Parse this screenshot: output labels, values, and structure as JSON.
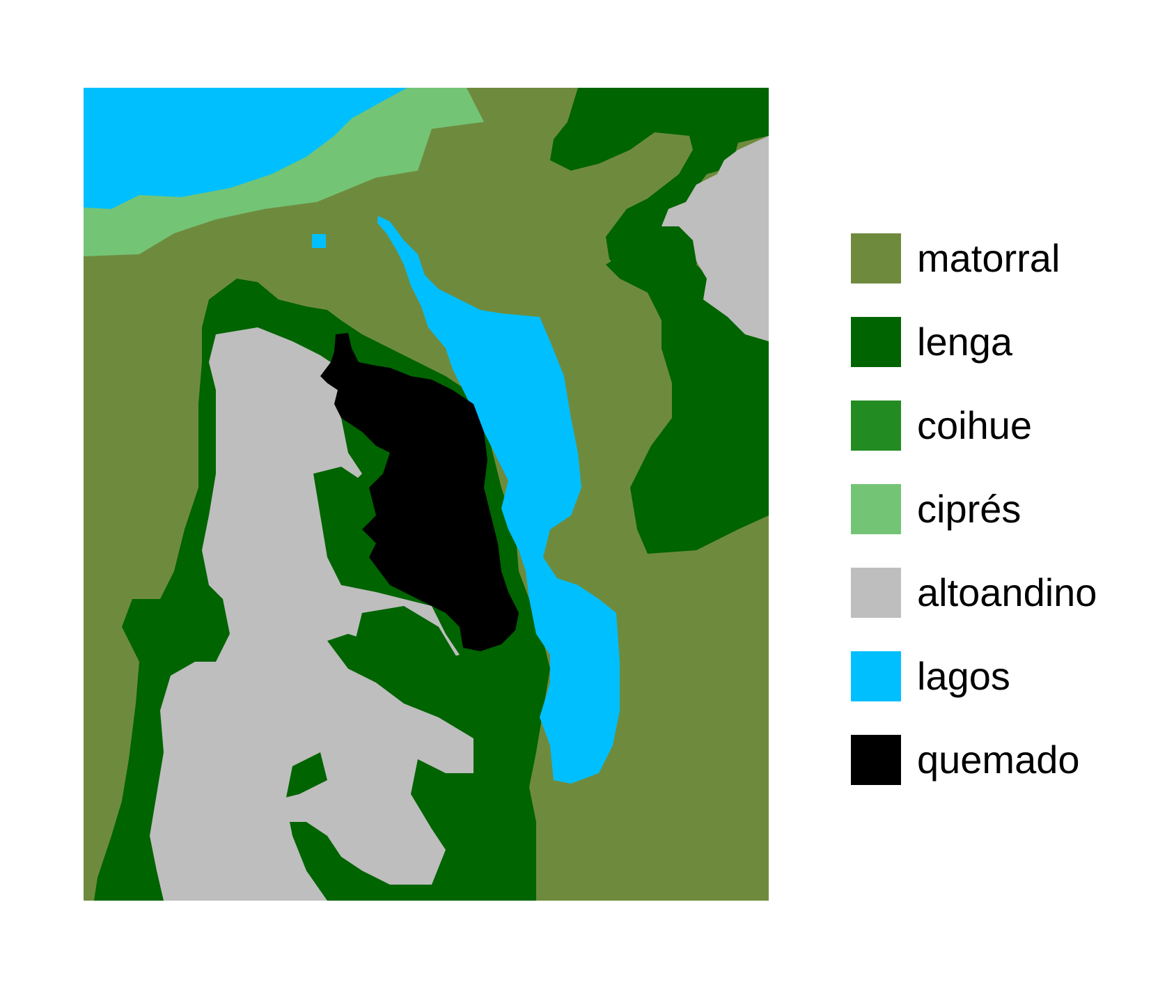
{
  "legend": {
    "items": [
      {
        "key": "matorral",
        "label": "matorral",
        "color": "#6e8b3d"
      },
      {
        "key": "lenga",
        "label": "lenga",
        "color": "#006400"
      },
      {
        "key": "coihue",
        "label": "coihue",
        "color": "#228b22"
      },
      {
        "key": "cipres",
        "label": "ciprés",
        "color": "#74c476"
      },
      {
        "key": "altoandino",
        "label": "altoandino",
        "color": "#bebebe"
      },
      {
        "key": "lagos",
        "label": "lagos",
        "color": "#00bfff"
      },
      {
        "key": "quemado",
        "label": "quemado",
        "color": "#000000"
      }
    ]
  }
}
